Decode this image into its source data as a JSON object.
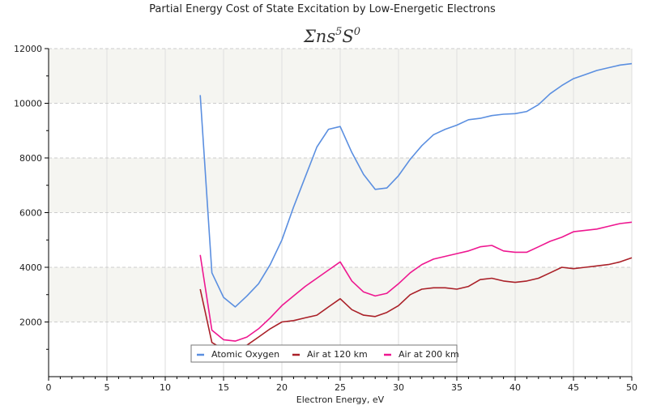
{
  "chart_data": {
    "type": "line",
    "title": "Partial Energy Cost of State Excitation by Low-Energetic Electrons",
    "subtitle": "Σns⁵S⁰",
    "subtitle_parts": {
      "sigma": "Σ",
      "ns": "ns",
      "sup1": "5",
      "s": "S",
      "sup2": "0"
    },
    "xlabel": "Electron Energy, eV",
    "ylabel": "",
    "xlim": [
      0,
      50
    ],
    "ylim": [
      0,
      12000
    ],
    "x_ticks": [
      0,
      5,
      10,
      15,
      20,
      25,
      30,
      35,
      40,
      45,
      50
    ],
    "x_tick_labels": [
      "0",
      "5",
      "10",
      "15",
      "20",
      "25",
      "30",
      "35",
      "40",
      "45",
      "50"
    ],
    "y_ticks": [
      2000,
      4000,
      6000,
      8000,
      10000,
      12000
    ],
    "y_tick_labels": [
      "2000",
      "4000",
      "6000",
      "8000",
      "10000",
      "12000"
    ],
    "grid": true,
    "legend_position": "bottom-center",
    "x": [
      13,
      14,
      15,
      16,
      17,
      18,
      19,
      20,
      21,
      22,
      23,
      24,
      25,
      26,
      27,
      28,
      29,
      30,
      31,
      32,
      33,
      34,
      35,
      36,
      37,
      38,
      39,
      40,
      41,
      42,
      43,
      44,
      45,
      46,
      47,
      48,
      49,
      50
    ],
    "series": [
      {
        "name": "Atomic Oxygen",
        "color": "#5b8fe0",
        "values": [
          10300,
          3800,
          2900,
          2550,
          2950,
          3400,
          4100,
          5000,
          6200,
          7300,
          8400,
          9050,
          9150,
          8200,
          7400,
          6850,
          6900,
          7350,
          7950,
          8450,
          8850,
          9050,
          9200,
          9400,
          9450,
          9550,
          9600,
          9620,
          9700,
          9950,
          10350,
          10650,
          10900,
          11050,
          11200,
          11300,
          11400,
          11450
        ]
      },
      {
        "name": "Air at 120 km",
        "color": "#aa2028",
        "values": [
          3200,
          1250,
          1000,
          950,
          1150,
          1450,
          1750,
          2000,
          2050,
          2150,
          2250,
          2550,
          2850,
          2450,
          2250,
          2200,
          2350,
          2600,
          3000,
          3200,
          3250,
          3250,
          3200,
          3300,
          3550,
          3600,
          3500,
          3450,
          3500,
          3600,
          3800,
          4000,
          3950,
          4000,
          4050,
          4100,
          4200,
          4350
        ]
      },
      {
        "name": "Air at 200 km",
        "color": "#ee1790",
        "values": [
          4450,
          1700,
          1350,
          1300,
          1450,
          1750,
          2150,
          2600,
          2950,
          3300,
          3600,
          3900,
          4200,
          3500,
          3100,
          2950,
          3050,
          3400,
          3800,
          4100,
          4300,
          4400,
          4500,
          4600,
          4750,
          4800,
          4600,
          4550,
          4550,
          4750,
          4950,
          5100,
          5300,
          5350,
          5400,
          5500,
          5600,
          5650
        ]
      }
    ]
  }
}
